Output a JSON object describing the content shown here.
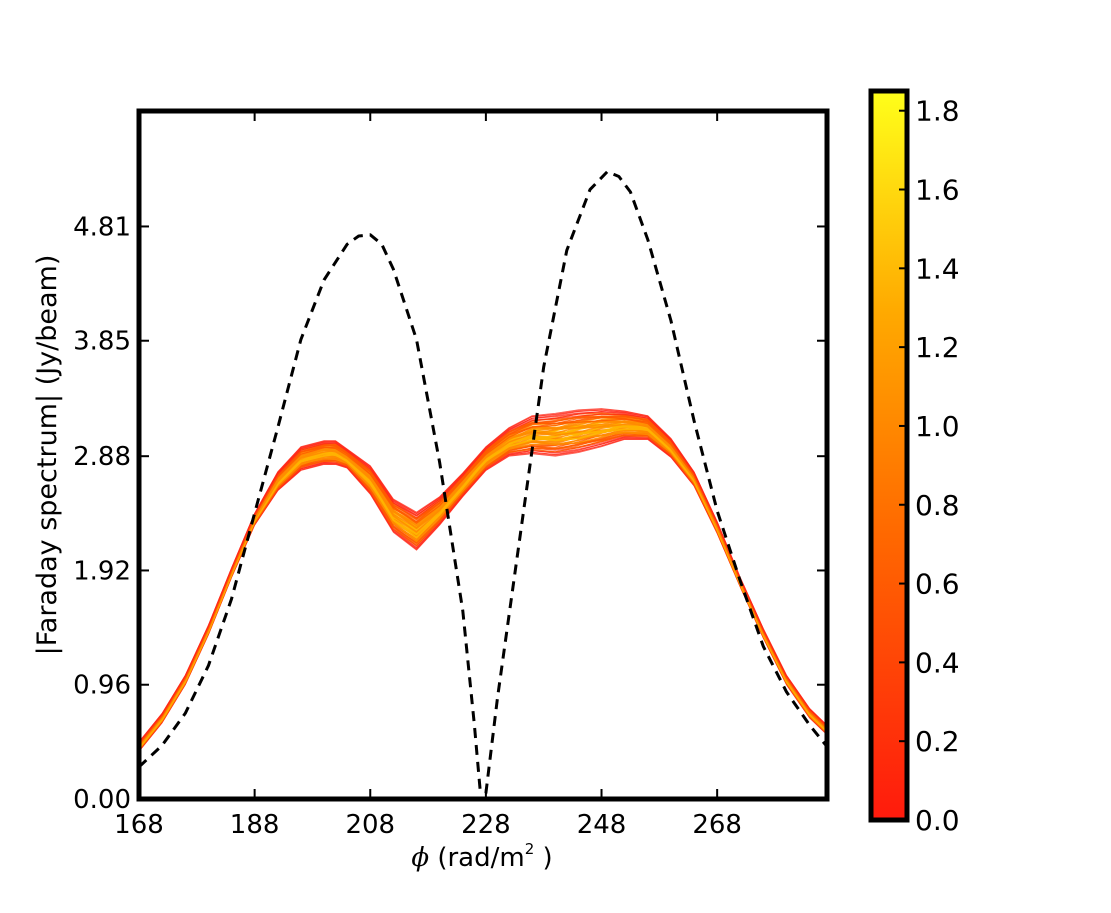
{
  "chart_data": {
    "type": "line",
    "xlabel_symbol": "ϕ",
    "xlabel_rest": " (rad/m",
    "xlabel_sup": "2",
    "xlabel_end": " )",
    "ylabel": "|Faraday spectrum| (Jy/beam)",
    "xlim": [
      168,
      287
    ],
    "ylim": [
      0.0,
      5.78
    ],
    "x_ticks": [
      168,
      188,
      208,
      228,
      248,
      268
    ],
    "x_tick_labels": [
      "168",
      "188",
      "208",
      "228",
      "248",
      "268"
    ],
    "y_ticks": [
      0.0,
      0.96,
      1.92,
      2.88,
      3.85,
      4.81
    ],
    "y_tick_labels": [
      "0.00",
      "0.96",
      "1.92",
      "2.88",
      "3.85",
      "4.81"
    ],
    "grid": false,
    "series": [
      {
        "style": "dashed black",
        "x": [
          168,
          172,
          176,
          180,
          184,
          188,
          192,
          196,
          200,
          204,
          206,
          208,
          210,
          212,
          216,
          220,
          224,
          226,
          227,
          228,
          230,
          234,
          238,
          242,
          246,
          249,
          251,
          253,
          256,
          260,
          264,
          268,
          272,
          276,
          280,
          284,
          287
        ],
        "y": [
          0.27,
          0.45,
          0.72,
          1.12,
          1.68,
          2.4,
          3.12,
          3.86,
          4.36,
          4.66,
          4.73,
          4.74,
          4.66,
          4.45,
          3.86,
          2.83,
          1.58,
          0.63,
          0.08,
          0.05,
          0.85,
          2.24,
          3.63,
          4.61,
          5.12,
          5.27,
          5.23,
          5.1,
          4.7,
          4.02,
          3.18,
          2.42,
          1.83,
          1.28,
          0.9,
          0.62,
          0.44
        ]
      }
    ],
    "band": {
      "x": [
        168,
        172,
        176,
        180,
        184,
        188,
        192,
        196,
        200,
        202,
        204,
        208,
        212,
        216,
        220,
        224,
        228,
        232,
        236,
        240,
        244,
        248,
        252,
        256,
        260,
        264,
        268,
        272,
        276,
        280,
        284,
        287
      ],
      "y_median": [
        0.44,
        0.68,
        1.0,
        1.42,
        1.9,
        2.35,
        2.67,
        2.86,
        2.91,
        2.91,
        2.86,
        2.68,
        2.38,
        2.25,
        2.42,
        2.64,
        2.86,
        3.0,
        3.06,
        3.06,
        3.09,
        3.12,
        3.14,
        3.12,
        2.95,
        2.69,
        2.28,
        1.82,
        1.39,
        1.0,
        0.72,
        0.58
      ],
      "y_spread": [
        0.04,
        0.04,
        0.04,
        0.04,
        0.04,
        0.05,
        0.08,
        0.1,
        0.1,
        0.1,
        0.08,
        0.12,
        0.14,
        0.16,
        0.12,
        0.1,
        0.1,
        0.12,
        0.16,
        0.18,
        0.18,
        0.16,
        0.12,
        0.1,
        0.08,
        0.06,
        0.05,
        0.04,
        0.04,
        0.04,
        0.04,
        0.04
      ]
    },
    "colorbar": {
      "min": 0.0,
      "max": 1.85,
      "ticks": [
        0.0,
        0.2,
        0.4,
        0.6,
        0.8,
        1.0,
        1.2,
        1.4,
        1.6,
        1.8
      ],
      "tick_labels": [
        "0.0",
        "0.2",
        "0.4",
        "0.6",
        "0.8",
        "1.0",
        "1.2",
        "1.4",
        "1.6",
        "1.8"
      ],
      "colors": [
        "#ff1a0d",
        "#ff6a00",
        "#ffaa00",
        "#ffff1a"
      ]
    }
  }
}
